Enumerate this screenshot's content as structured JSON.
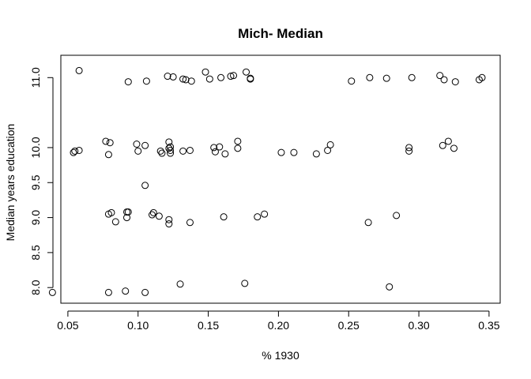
{
  "chart_data": {
    "type": "scatter",
    "title": "Mich- Median",
    "xlabel": "% 1930",
    "ylabel": "Median years education",
    "xlim": [
      0.03,
      0.35
    ],
    "ylim": [
      7.9,
      11.1
    ],
    "x_ticks": [
      0.05,
      0.1,
      0.15,
      0.2,
      0.25,
      0.3,
      0.35
    ],
    "x_tick_labels": [
      "0.05",
      "0.10",
      "0.15",
      "0.20",
      "0.25",
      "0.30",
      "0.35"
    ],
    "y_ticks": [
      8.0,
      8.5,
      9.0,
      9.5,
      10.0,
      11.0
    ],
    "y_tick_labels": [
      "8.0",
      "8.5",
      "9.0",
      "9.5",
      "10.0",
      "11.0"
    ],
    "grid": false,
    "legend": "none",
    "marker": "open-circle",
    "x": [
      0.058,
      0.093,
      0.106,
      0.121,
      0.125,
      0.132,
      0.134,
      0.138,
      0.148,
      0.151,
      0.159,
      0.166,
      0.168,
      0.177,
      0.18,
      0.18,
      0.252,
      0.265,
      0.277,
      0.295,
      0.315,
      0.318,
      0.326,
      0.343,
      0.345,
      0.054,
      0.055,
      0.058,
      0.077,
      0.079,
      0.08,
      0.099,
      0.1,
      0.105,
      0.116,
      0.117,
      0.122,
      0.122,
      0.123,
      0.123,
      0.123,
      0.132,
      0.137,
      0.154,
      0.155,
      0.158,
      0.162,
      0.171,
      0.171,
      0.202,
      0.211,
      0.227,
      0.235,
      0.237,
      0.293,
      0.293,
      0.317,
      0.321,
      0.325,
      0.105,
      0.079,
      0.081,
      0.084,
      0.092,
      0.092,
      0.093,
      0.11,
      0.111,
      0.115,
      0.122,
      0.122,
      0.137,
      0.161,
      0.185,
      0.19,
      0.264,
      0.284,
      0.039,
      0.079,
      0.091,
      0.105,
      0.13,
      0.176,
      0.279
    ],
    "y": [
      11.1,
      10.94,
      10.95,
      11.02,
      11.01,
      10.98,
      10.97,
      10.95,
      11.08,
      10.98,
      11.0,
      11.02,
      11.03,
      11.08,
      10.99,
      10.98,
      10.95,
      11.0,
      10.99,
      11.0,
      11.03,
      10.97,
      10.94,
      10.97,
      11.0,
      9.93,
      9.95,
      9.96,
      10.09,
      9.9,
      10.07,
      10.05,
      9.95,
      10.03,
      9.95,
      9.92,
      10.08,
      9.99,
      10.01,
      9.96,
      9.92,
      9.95,
      9.96,
      10.0,
      9.94,
      10.01,
      9.91,
      10.09,
      9.99,
      9.93,
      9.93,
      9.91,
      9.96,
      10.04,
      10.0,
      9.95,
      10.03,
      10.09,
      9.99,
      9.46,
      9.05,
      9.07,
      8.94,
      9.0,
      9.08,
      9.08,
      9.04,
      9.07,
      9.02,
      8.91,
      8.97,
      8.93,
      9.01,
      9.01,
      9.05,
      8.93,
      9.03,
      7.93,
      7.93,
      7.95,
      7.93,
      8.05,
      8.06,
      8.01
    ]
  }
}
